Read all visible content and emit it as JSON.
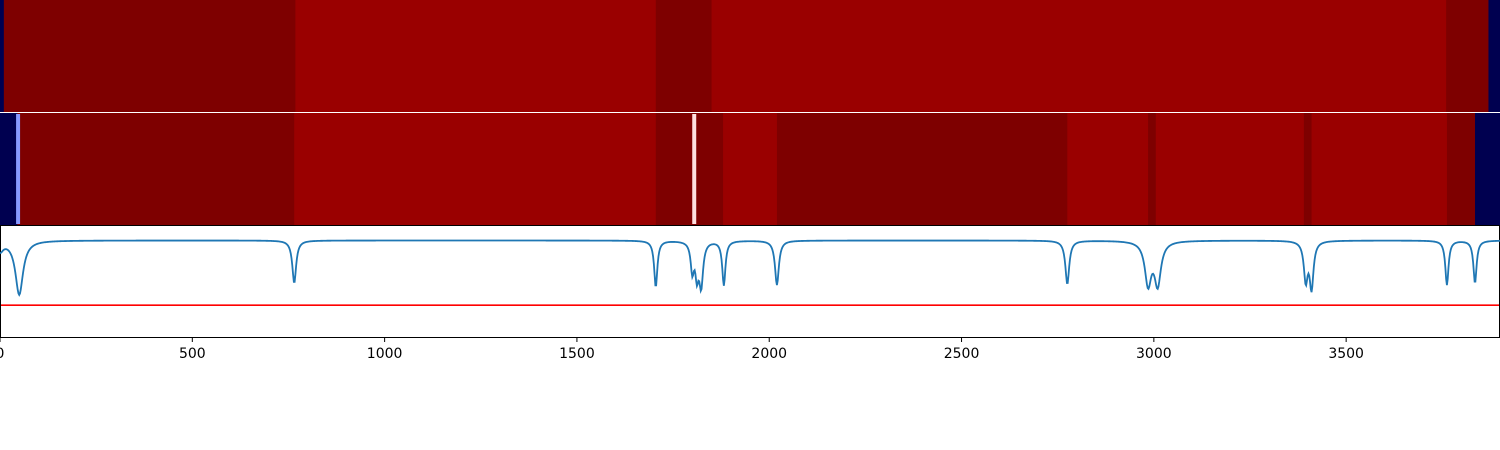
{
  "chart_data": {
    "type": "heatmap",
    "title": "",
    "xlabel": "",
    "xlim": [
      0,
      3900
    ],
    "xticks": [
      0,
      500,
      1000,
      1500,
      2000,
      2500,
      3000,
      3500
    ],
    "colors": {
      "background": "#000050",
      "dark_red": "#7e0000",
      "red": "#9a0000",
      "line": "#1f77b4",
      "threshold": "#ff0000",
      "marker_blue": "#8899ff",
      "marker_pink": "#ffe0e0"
    },
    "rows": [
      {
        "segments": [
          {
            "start": 0,
            "end": 10,
            "shade": "background"
          },
          {
            "start": 10,
            "end": 768,
            "shade": "dark_red"
          },
          {
            "start": 768,
            "end": 1705,
            "shade": "red"
          },
          {
            "start": 1705,
            "end": 1850,
            "shade": "dark_red"
          },
          {
            "start": 1850,
            "end": 3760,
            "shade": "red"
          },
          {
            "start": 3760,
            "end": 3870,
            "shade": "dark_red"
          },
          {
            "start": 3870,
            "end": 3900,
            "shade": "background"
          }
        ],
        "markers": []
      },
      {
        "segments": [
          {
            "start": 0,
            "end": 45,
            "shade": "background"
          },
          {
            "start": 45,
            "end": 765,
            "shade": "dark_red"
          },
          {
            "start": 765,
            "end": 1705,
            "shade": "red"
          },
          {
            "start": 1705,
            "end": 1880,
            "shade": "dark_red"
          },
          {
            "start": 1880,
            "end": 2020,
            "shade": "red"
          },
          {
            "start": 2020,
            "end": 2775,
            "shade": "dark_red"
          },
          {
            "start": 2775,
            "end": 2985,
            "shade": "red"
          },
          {
            "start": 2985,
            "end": 3005,
            "shade": "dark_red"
          },
          {
            "start": 3005,
            "end": 3390,
            "shade": "red"
          },
          {
            "start": 3390,
            "end": 3410,
            "shade": "dark_red"
          },
          {
            "start": 3410,
            "end": 3762,
            "shade": "red"
          },
          {
            "start": 3762,
            "end": 3835,
            "shade": "dark_red"
          },
          {
            "start": 3835,
            "end": 3900,
            "shade": "background"
          }
        ],
        "markers": [
          {
            "x": 47,
            "color": "marker_blue"
          },
          {
            "x": 1805,
            "color": "marker_pink"
          }
        ]
      }
    ],
    "line_series": {
      "baseline": 0,
      "ylim": [
        -1,
        0.15
      ],
      "threshold": -0.67,
      "dips": [
        {
          "x": 0,
          "depth": 0.1,
          "width": 10
        },
        {
          "x": 50,
          "depth": 0.56,
          "width": 12
        },
        {
          "x": 765,
          "depth": 0.44,
          "width": 6
        },
        {
          "x": 1705,
          "depth": 0.48,
          "width": 5
        },
        {
          "x": 1800,
          "depth": 0.3,
          "width": 5
        },
        {
          "x": 1812,
          "depth": 0.32,
          "width": 5
        },
        {
          "x": 1823,
          "depth": 0.45,
          "width": 6
        },
        {
          "x": 1882,
          "depth": 0.46,
          "width": 5
        },
        {
          "x": 2020,
          "depth": 0.46,
          "width": 6
        },
        {
          "x": 2775,
          "depth": 0.45,
          "width": 6
        },
        {
          "x": 2985,
          "depth": 0.44,
          "width": 10
        },
        {
          "x": 3010,
          "depth": 0.44,
          "width": 10
        },
        {
          "x": 3395,
          "depth": 0.4,
          "width": 6
        },
        {
          "x": 3410,
          "depth": 0.48,
          "width": 6
        },
        {
          "x": 3762,
          "depth": 0.46,
          "width": 5
        },
        {
          "x": 3835,
          "depth": 0.44,
          "width": 5
        }
      ]
    }
  }
}
